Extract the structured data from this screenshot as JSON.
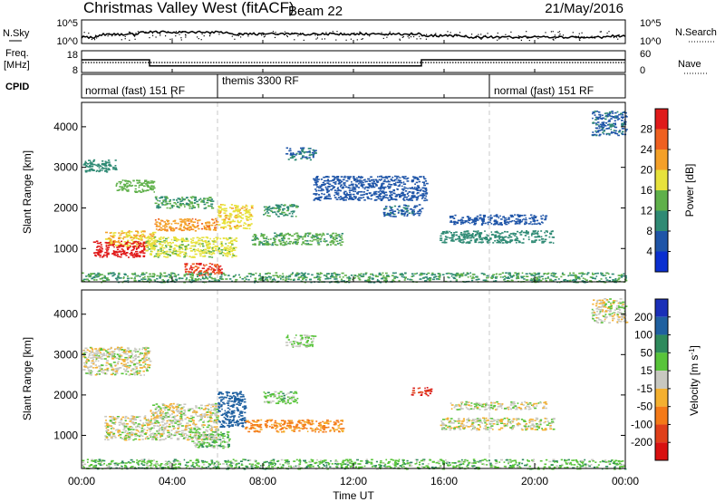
{
  "header": {
    "station": "Christmas Valley West (fitACF)",
    "beam": "Beam 22",
    "date": "21/May/2016"
  },
  "noise_panel": {
    "left_label": "N.Sky",
    "right_label": "N.Search",
    "left_ticks": [
      "10^5",
      "10^0"
    ],
    "right_ticks": [
      "10^5",
      "10^0"
    ]
  },
  "freq_panel": {
    "left_label_1": "Freq.",
    "left_label_2": "[MHz]",
    "left_ticks": [
      "18",
      "8"
    ],
    "right_label": "Nave",
    "right_ticks": [
      "60",
      "0"
    ],
    "freq_steps": [
      {
        "start": "00:00",
        "end": "03:00",
        "mhz": 14.5
      },
      {
        "start": "03:00",
        "end": "15:00",
        "mhz": 10.5
      },
      {
        "start": "15:00",
        "end": "24:00",
        "mhz": 14.5
      }
    ]
  },
  "cpid": {
    "label": "CPID",
    "segments": [
      {
        "start_hour": 0,
        "end_hour": 6,
        "text": "normal (fast) 151 RF"
      },
      {
        "start_hour": 6,
        "end_hour": 18,
        "text": "themis 3300 RF"
      },
      {
        "start_hour": 18,
        "end_hour": 24,
        "text": "normal (fast) 151 RF"
      }
    ]
  },
  "axes": {
    "ylabel": "Slant Range [km]",
    "y_ticks": [
      "1000",
      "2000",
      "3000",
      "4000"
    ],
    "x_ticks": [
      "00:00",
      "04:00",
      "08:00",
      "12:00",
      "16:00",
      "20:00",
      "00:00"
    ],
    "xlabel": "Time UT"
  },
  "power_scale": {
    "label": "Power [dB]",
    "ticks": [
      "4",
      "8",
      "12",
      "16",
      "20",
      "24",
      "28"
    ],
    "colors": [
      "#0a2fd0",
      "#1f55a8",
      "#2f8a74",
      "#5fb04a",
      "#e7e23c",
      "#f4a028",
      "#ef6020",
      "#e01a1a"
    ]
  },
  "velocity_scale": {
    "label": "Velocity [m s",
    "label_sup": "-1",
    "label_end": "]",
    "ticks": [
      "200",
      "100",
      "50",
      "15",
      "-15",
      "-50",
      "-100",
      "-200"
    ],
    "colors": [
      "#1a2fb8",
      "#1f60a0",
      "#2e8a5c",
      "#58c43a",
      "#c8c8c0",
      "#f4b030",
      "#f47a18",
      "#e0401a",
      "#d81010"
    ]
  },
  "chart_data": [
    {
      "type": "heatmap",
      "title": "Power [dB]",
      "xlabel": "Time UT",
      "ylabel": "Slant Range [km]",
      "x_range_hours": [
        0,
        24
      ],
      "ylim": [
        180,
        4600
      ],
      "color_range": [
        0,
        32
      ],
      "regions": [
        {
          "t0": 0.0,
          "t1": 1.5,
          "r0": 2900,
          "r1": 3200,
          "value": 10
        },
        {
          "t0": 1.5,
          "t1": 3.2,
          "r0": 2400,
          "r1": 2700,
          "value": 14
        },
        {
          "t0": 3.2,
          "t1": 5.8,
          "r0": 2000,
          "r1": 2300,
          "value": 12
        },
        {
          "t0": 1.0,
          "t1": 3.2,
          "r0": 1050,
          "r1": 1450,
          "value": 20
        },
        {
          "t0": 0.5,
          "t1": 2.8,
          "r0": 800,
          "r1": 1200,
          "value": 30
        },
        {
          "t0": 3.2,
          "t1": 6.0,
          "r0": 1450,
          "r1": 1750,
          "value": 23
        },
        {
          "t0": 2.8,
          "t1": 6.8,
          "r0": 800,
          "r1": 1300,
          "value": 17
        },
        {
          "t0": 4.5,
          "t1": 6.2,
          "r0": 350,
          "r1": 650,
          "value": 28
        },
        {
          "t0": 6.0,
          "t1": 7.5,
          "r0": 1500,
          "r1": 2100,
          "value": 19
        },
        {
          "t0": 7.5,
          "t1": 11.5,
          "r0": 1100,
          "r1": 1400,
          "value": 13
        },
        {
          "t0": 8.0,
          "t1": 9.5,
          "r0": 1800,
          "r1": 2100,
          "value": 11
        },
        {
          "t0": 9.0,
          "t1": 10.3,
          "r0": 3200,
          "r1": 3500,
          "value": 8
        },
        {
          "t0": 10.2,
          "t1": 15.2,
          "r0": 2200,
          "r1": 2800,
          "value": 6
        },
        {
          "t0": 13.3,
          "t1": 15.0,
          "r0": 1800,
          "r1": 2100,
          "value": 7
        },
        {
          "t0": 15.8,
          "t1": 20.8,
          "r0": 1150,
          "r1": 1450,
          "value": 10
        },
        {
          "t0": 16.2,
          "t1": 20.5,
          "r0": 1600,
          "r1": 1850,
          "value": 6
        },
        {
          "t0": 22.5,
          "t1": 24.0,
          "r0": 3800,
          "r1": 4400,
          "value": 7
        },
        {
          "t0": 0.0,
          "t1": 24.0,
          "r0": 180,
          "r1": 420,
          "value": 12
        }
      ]
    },
    {
      "type": "heatmap",
      "title": "Velocity [m s-1]",
      "xlabel": "Time UT",
      "ylabel": "Slant Range [km]",
      "x_range_hours": [
        0,
        24
      ],
      "ylim": [
        180,
        4600
      ],
      "color_range": [
        -250,
        250
      ],
      "regions": [
        {
          "t0": 0.0,
          "t1": 3.0,
          "r0": 2500,
          "r1": 3200,
          "value": 0
        },
        {
          "t0": 1.0,
          "t1": 6.0,
          "r0": 900,
          "r1": 1500,
          "value": 0
        },
        {
          "t0": 3.0,
          "t1": 6.0,
          "r0": 1450,
          "r1": 1800,
          "value": 0
        },
        {
          "t0": 4.8,
          "t1": 6.5,
          "r0": 700,
          "r1": 1100,
          "value": 30
        },
        {
          "t0": 6.0,
          "t1": 7.2,
          "r0": 1200,
          "r1": 2100,
          "value": 150
        },
        {
          "t0": 7.2,
          "t1": 11.5,
          "r0": 1100,
          "r1": 1400,
          "value": -60
        },
        {
          "t0": 8.0,
          "t1": 9.5,
          "r0": 1800,
          "r1": 2100,
          "value": 25
        },
        {
          "t0": 9.0,
          "t1": 10.3,
          "r0": 3200,
          "r1": 3500,
          "value": 20
        },
        {
          "t0": 14.5,
          "t1": 15.4,
          "r0": 2000,
          "r1": 2200,
          "value": -200
        },
        {
          "t0": 15.8,
          "t1": 20.8,
          "r0": 1150,
          "r1": 1450,
          "value": 0
        },
        {
          "t0": 16.2,
          "t1": 20.5,
          "r0": 1650,
          "r1": 1850,
          "value": 0
        },
        {
          "t0": 22.5,
          "t1": 24.0,
          "r0": 3800,
          "r1": 4400,
          "value": 0
        },
        {
          "t0": 0.0,
          "t1": 24.0,
          "r0": 180,
          "r1": 420,
          "value": 35
        }
      ]
    }
  ]
}
